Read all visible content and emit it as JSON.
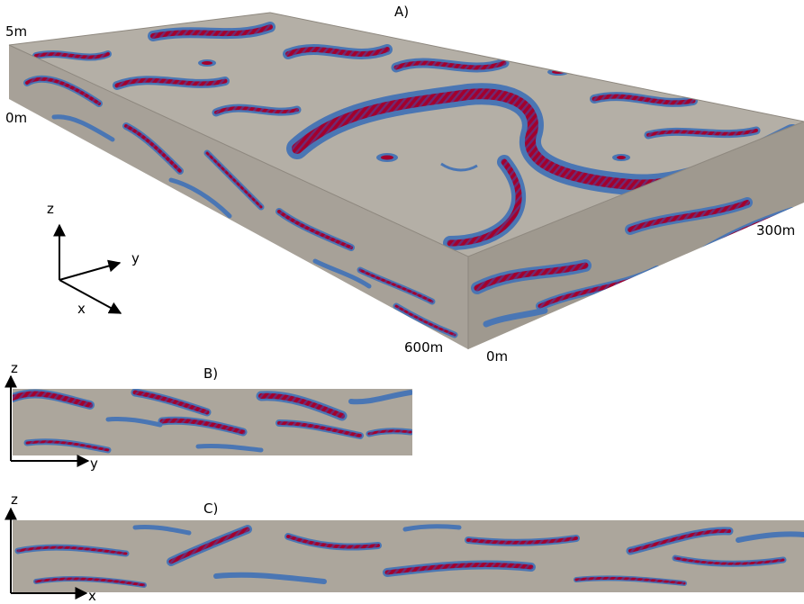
{
  "colors": {
    "matrix": "#aca69c",
    "top_face": "#b4afa6",
    "side_face": "#a7a198",
    "front_face": "#9f998f",
    "facies_blue": "#4a76b4",
    "facies_red": "#a3002d",
    "facies_purple": "#6e2a72",
    "axis": "#000000"
  },
  "panels": {
    "a": {
      "label": "A)",
      "depth_top": "5m",
      "depth_bottom": "0m",
      "width_label": "300m",
      "length_label": "600m",
      "origin_label": "0m",
      "axes": {
        "z": "z",
        "y": "y",
        "x": "x"
      }
    },
    "b": {
      "label": "B)",
      "axes": {
        "z": "z",
        "y": "y"
      }
    },
    "c": {
      "label": "C)",
      "axes": {
        "z": "z",
        "x": "x"
      }
    }
  }
}
